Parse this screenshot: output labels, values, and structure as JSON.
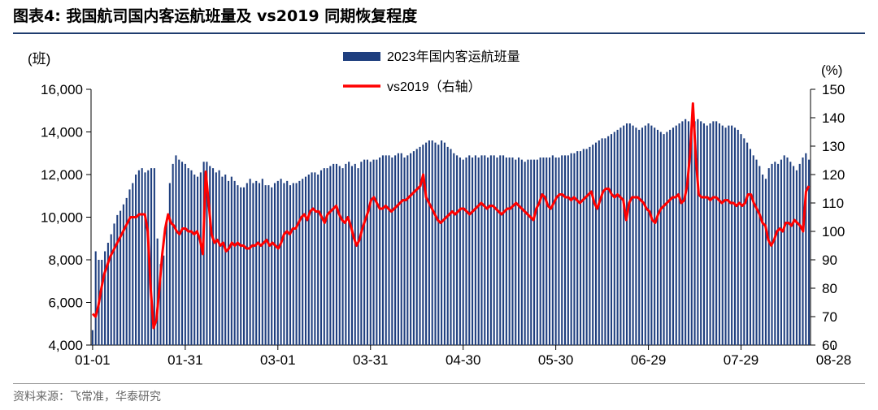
{
  "header": {
    "title": "图表4:   我国航司国内客运航班量及 vs2019 同期恢复程度"
  },
  "source": "资料来源：飞常准，华泰研究",
  "colors": {
    "bar": "#1f3f7f",
    "line": "#ff0000",
    "title_rule": "#1f3c6e"
  },
  "chart_data": {
    "type": "bar",
    "left_unit": "(班)",
    "right_unit": "(%)",
    "legend": {
      "placement": "top-center",
      "entries": [
        "2023年国内客运航班量",
        "vs2019（右轴）"
      ]
    },
    "y_left": {
      "min": 4000,
      "max": 16000,
      "ticks": [
        "4,000",
        "6,000",
        "8,000",
        "10,000",
        "12,000",
        "14,000",
        "16,000"
      ]
    },
    "y_right": {
      "min": 60,
      "max": 150,
      "ticks": [
        "60",
        "70",
        "80",
        "90",
        "100",
        "110",
        "120",
        "130",
        "140",
        "150"
      ]
    },
    "x_ticks": [
      "01-01",
      "01-31",
      "03-01",
      "03-31",
      "04-30",
      "05-30",
      "06-29",
      "07-29",
      "08-28"
    ],
    "series": [
      {
        "name": "2023年国内客运航班量",
        "type": "bar",
        "axis": "left",
        "values": [
          4700,
          8400,
          8000,
          8000,
          8400,
          8800,
          9200,
          9700,
          10100,
          10300,
          10600,
          10900,
          11300,
          11600,
          12000,
          12200,
          12300,
          12100,
          12200,
          12300,
          12300,
          9000,
          7800,
          8200,
          9800,
          11600,
          12500,
          12900,
          12700,
          12600,
          12500,
          12300,
          12200,
          12000,
          11900,
          12100,
          12600,
          12600,
          12400,
          12300,
          12100,
          12200,
          11900,
          12000,
          11700,
          11900,
          11700,
          11500,
          11400,
          11400,
          11600,
          11800,
          11600,
          11700,
          11600,
          11800,
          11500,
          11500,
          11400,
          11600,
          11700,
          11800,
          11600,
          11700,
          11500,
          11600,
          11600,
          11700,
          11800,
          11900,
          12000,
          12100,
          12100,
          12000,
          12200,
          12300,
          12300,
          12400,
          12500,
          12500,
          12400,
          12300,
          12500,
          12600,
          12400,
          12500,
          12300,
          12600,
          12700,
          12700,
          12600,
          12700,
          12700,
          12800,
          12900,
          12900,
          12900,
          12800,
          12900,
          13000,
          13000,
          12800,
          12900,
          13000,
          13100,
          13200,
          13300,
          13400,
          13500,
          13600,
          13600,
          13500,
          13400,
          13600,
          13500,
          13300,
          13200,
          13000,
          12900,
          12800,
          12700,
          12800,
          12900,
          12800,
          12900,
          12800,
          12900,
          12900,
          12800,
          12900,
          12900,
          12800,
          12900,
          12900,
          12800,
          12800,
          12800,
          12700,
          12800,
          12700,
          12600,
          12700,
          12700,
          12700,
          12700,
          12800,
          12800,
          12800,
          12800,
          12900,
          12800,
          12800,
          12900,
          12900,
          12900,
          13000,
          13000,
          13100,
          13100,
          13200,
          13200,
          13300,
          13400,
          13500,
          13600,
          13700,
          13700,
          13800,
          13900,
          14000,
          14100,
          14200,
          14300,
          14400,
          14400,
          14300,
          14200,
          14100,
          14200,
          14300,
          14400,
          14300,
          14200,
          14100,
          14000,
          13900,
          14000,
          14100,
          14200,
          14300,
          14400,
          14500,
          14600,
          14500,
          14400,
          14500,
          14600,
          14500,
          14400,
          14300,
          14400,
          14500,
          14500,
          14400,
          14300,
          14200,
          14300,
          14300,
          14200,
          14100,
          13900,
          13700,
          13500,
          13200,
          12900,
          12700,
          12400,
          12000,
          11800,
          12300,
          12500,
          12600,
          12500,
          12700,
          12900,
          12800,
          12600,
          12400,
          12200,
          12500,
          12800,
          13000,
          12700
        ]
      },
      {
        "name": "vs2019（右轴）",
        "type": "line",
        "axis": "right",
        "values": [
          71,
          70,
          74,
          80,
          85,
          88,
          91,
          93,
          95,
          97,
          99,
          101,
          103,
          105,
          105,
          105,
          106,
          106,
          106,
          100,
          80,
          66,
          69,
          80,
          92,
          101,
          106,
          103,
          102,
          100,
          99,
          101,
          101,
          100,
          100,
          99,
          100,
          97,
          92,
          121,
          110,
          99,
          96,
          97,
          95,
          96,
          93,
          94,
          96,
          95,
          96,
          95,
          95,
          94,
          94,
          95,
          95,
          96,
          95,
          96,
          97,
          95,
          96,
          95,
          94,
          96,
          99,
          100,
          99,
          101,
          101,
          103,
          105,
          106,
          104,
          107,
          108,
          107,
          107,
          105,
          103,
          106,
          107,
          108,
          109,
          106,
          104,
          103,
          105,
          102,
          98,
          95,
          97,
          101,
          104,
          107,
          111,
          112,
          110,
          108,
          108,
          109,
          108,
          107,
          108,
          109,
          110,
          111,
          111,
          112,
          113,
          114,
          115,
          116,
          120,
          112,
          110,
          108,
          106,
          104,
          103,
          104,
          105,
          106,
          107,
          106,
          107,
          108,
          108,
          107,
          106,
          107,
          108,
          109,
          110,
          109,
          108,
          109,
          109,
          108,
          107,
          106,
          107,
          108,
          108,
          109,
          110,
          109,
          108,
          107,
          106,
          105,
          104,
          108,
          110,
          113,
          112,
          109,
          108,
          110,
          112,
          113,
          113,
          112,
          112,
          111,
          112,
          111,
          110,
          111,
          112,
          113,
          114,
          110,
          108,
          111,
          114,
          115,
          115,
          113,
          112,
          113,
          112,
          111,
          104,
          110,
          112,
          112,
          112,
          111,
          110,
          108,
          107,
          104,
          103,
          106,
          108,
          109,
          110,
          111,
          112,
          112,
          113,
          110,
          111,
          116,
          127,
          145,
          126,
          113,
          112,
          112,
          112,
          111,
          112,
          112,
          111,
          110,
          111,
          111,
          110,
          110,
          109,
          110,
          109,
          110,
          113,
          113,
          110,
          108,
          106,
          103,
          102,
          97,
          95,
          97,
          100,
          101,
          100,
          103,
          103,
          102,
          104,
          103,
          102,
          100,
          114,
          116
        ]
      }
    ]
  }
}
